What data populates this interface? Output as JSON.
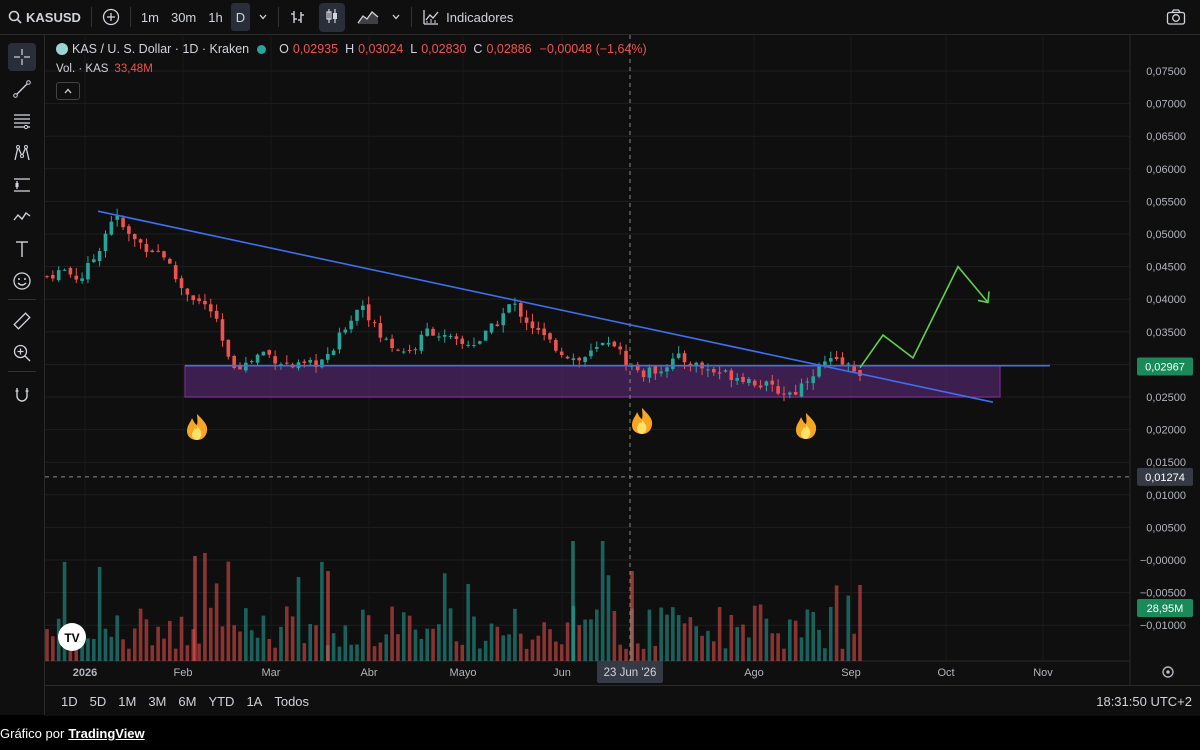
{
  "toolbar": {
    "symbol": "KASUSD",
    "intervals": [
      "1m",
      "30m",
      "1h",
      "D"
    ],
    "indicators_label": "Indicadores"
  },
  "legend": {
    "title": "KAS / U. S. Dollar · 1D · Kraken",
    "o_label": "O",
    "o": "0,02935",
    "h_label": "H",
    "h": "0,03024",
    "l_label": "L",
    "l": "0,02830",
    "c_label": "C",
    "c": "0,02886",
    "change": "−0,00048 (−1,64%)"
  },
  "volume_legend": {
    "label": "Vol. · KAS",
    "value": "33,48M"
  },
  "bottombar": {
    "ranges": [
      "1D",
      "5D",
      "1M",
      "3M",
      "6M",
      "YTD",
      "1A",
      "Todos"
    ],
    "clock": "18:31:50 UTC+2"
  },
  "credit": {
    "prefix": "Gráfico por",
    "brand": "TradingView"
  },
  "colors": {
    "up": "#26a69a",
    "down": "#ef5350",
    "trendline": "#3d6ff0",
    "zone_fill": "#5b2a78",
    "zone_border": "#b23fd6",
    "projection": "#5fd14d",
    "price_tag": "#1b8a5a"
  },
  "icons": [
    "search-icon",
    "plus-icon",
    "bar-type-icon",
    "candle-icon",
    "area-icon",
    "indicators-icon",
    "camera-icon",
    "crosshair-icon",
    "line-tool-icon",
    "fib-icon",
    "pattern-icon",
    "measure-icon",
    "brush-icon",
    "text-icon",
    "emoji-icon",
    "ruler-icon",
    "zoom-icon",
    "magnet-icon",
    "settings-icon",
    "fire-icon"
  ],
  "chart_data": {
    "type": "candlestick",
    "price_axis": {
      "ticks": [
        "0,07500",
        "0,07000",
        "0,06500",
        "0,06000",
        "0,05500",
        "0,05000",
        "0,04500",
        "0,04000",
        "0,03500",
        "0,03000",
        "0,02500",
        "0,02000",
        "0,01500",
        "0,01000",
        "0,00500",
        "−0,00000",
        "−0,00500",
        "−0,01000"
      ],
      "ylim": [
        -0.011,
        0.0765
      ],
      "current_price_label": "0,02967",
      "crosshair_price_label": "0,01274",
      "volume_label": "28,95M"
    },
    "time_axis": {
      "ticks": [
        "2026",
        "Feb",
        "Mar",
        "Abr",
        "Mayo",
        "Jun",
        "23 Jun '26",
        "Ago",
        "Sep",
        "Oct",
        "Nov"
      ],
      "crosshair_label": "23 Jun '26"
    },
    "series": [
      {
        "name": "KAS / U. S. Dollar",
        "close": [
          0.0435,
          0.0445,
          0.043,
          0.047,
          0.053,
          0.0495,
          0.048,
          0.047,
          0.042,
          0.04,
          0.038,
          0.03,
          0.03,
          0.032,
          0.0305,
          0.0295,
          0.03,
          0.031,
          0.036,
          0.0395,
          0.0345,
          0.0325,
          0.032,
          0.0355,
          0.034,
          0.033,
          0.0335,
          0.036,
          0.0395,
          0.0365,
          0.034,
          0.032,
          0.0305,
          0.032,
          0.034,
          0.03,
          0.0285,
          0.0295,
          0.031,
          0.03,
          0.029,
          0.0285,
          0.028,
          0.027,
          0.026,
          0.0255,
          0.0285,
          0.0305,
          0.03,
          0.029
        ]
      }
    ],
    "annotations": {
      "trendline": {
        "from": [
          "2026-01-08",
          0.0535
        ],
        "to": [
          "2026-10-18",
          0.0242
        ]
      },
      "horizontal_line": 0.0298,
      "support_zone": [
        0.025,
        0.0298
      ],
      "projection": [
        0.0295,
        0.0345,
        0.031,
        0.045,
        0.0395
      ],
      "markers": [
        "fire",
        "fire",
        "fire"
      ]
    }
  }
}
